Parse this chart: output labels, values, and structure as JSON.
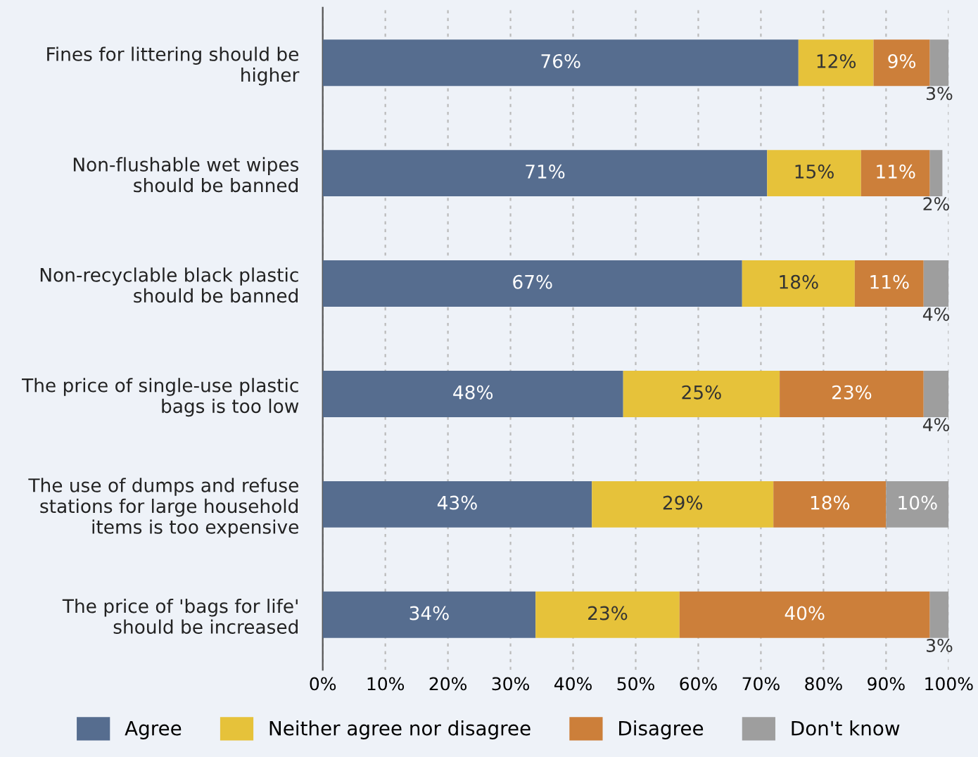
{
  "chart_data": {
    "type": "bar",
    "orientation": "horizontal",
    "stacked": true,
    "categories": [
      "Fines for littering should be\nhigher",
      "Non-flushable wet wipes\nshould be banned",
      "Non-recyclable black plastic\nshould be banned",
      "The price of single-use plastic\nbags is too low",
      "The use of dumps and refuse\nstations for large household\nitems is too expensive",
      "The price of 'bags for life'\nshould be increased"
    ],
    "series": [
      {
        "name": "Agree",
        "color": "#566d8f",
        "values": [
          76,
          71,
          67,
          48,
          43,
          34
        ],
        "value_labels": [
          "76%",
          "71%",
          "67%",
          "48%",
          "43%",
          "34%"
        ]
      },
      {
        "name": "Neither agree nor disagree",
        "color": "#e6c23a",
        "values": [
          12,
          15,
          18,
          25,
          29,
          23
        ],
        "value_labels": [
          "12%",
          "15%",
          "18%",
          "25%",
          "29%",
          "23%"
        ]
      },
      {
        "name": "Disagree",
        "color": "#cc7f3a",
        "values": [
          9,
          11,
          11,
          23,
          18,
          40
        ],
        "value_labels": [
          "9%",
          "11%",
          "11%",
          "23%",
          "18%",
          "40%"
        ]
      },
      {
        "name": "Don't know",
        "color": "#9e9e9e",
        "values": [
          3,
          2,
          4,
          4,
          10,
          3
        ],
        "value_labels": [
          "3%",
          "2%",
          "4%",
          "4%",
          "10%",
          "3%"
        ]
      }
    ],
    "xlim": [
      0,
      100
    ],
    "xticks": [
      {
        "value": 0,
        "label": "0%"
      },
      {
        "value": 10,
        "label": "10%"
      },
      {
        "value": 20,
        "label": "20%"
      },
      {
        "value": 30,
        "label": "30%"
      },
      {
        "value": 40,
        "label": "40%"
      },
      {
        "value": 50,
        "label": "50%"
      },
      {
        "value": 60,
        "label": "60%"
      },
      {
        "value": 70,
        "label": "70%"
      },
      {
        "value": 80,
        "label": "80%"
      },
      {
        "value": 90,
        "label": "90%"
      },
      {
        "value": 100,
        "label": "100%"
      }
    ],
    "grid": "x",
    "legend": "bottom"
  }
}
